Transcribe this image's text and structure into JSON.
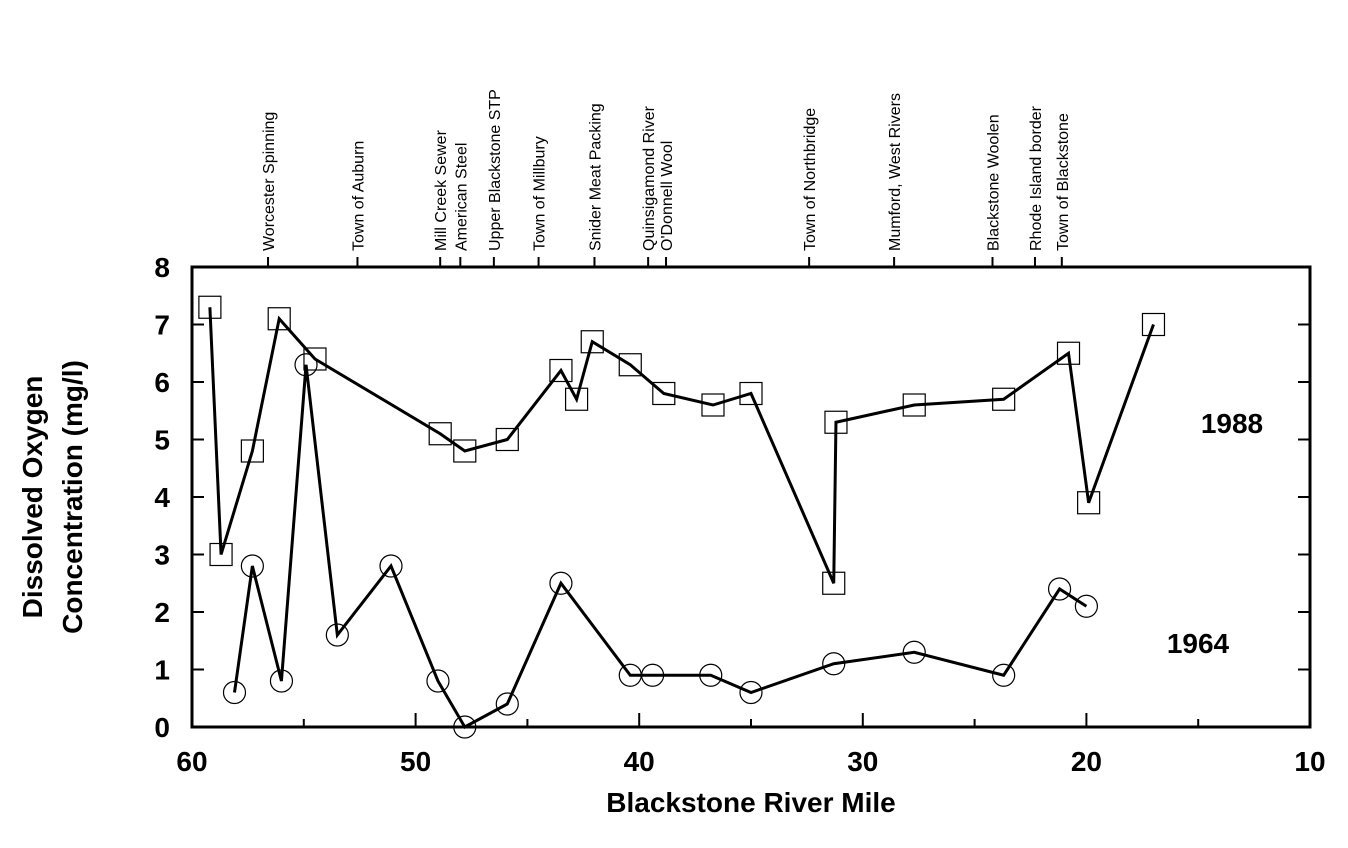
{
  "chart_data": {
    "type": "line",
    "x_label": "Blackstone River Mile",
    "y_label": [
      "Dissolved Oxygen",
      "Concentration (mg/l)"
    ],
    "xlim": [
      60,
      10
    ],
    "xticks": [
      60,
      50,
      40,
      30,
      20,
      10
    ],
    "xminor_ticks": [
      55,
      45,
      35,
      25,
      15
    ],
    "ylim": [
      0,
      8
    ],
    "yticks": [
      0,
      1,
      2,
      3,
      4,
      5,
      6,
      7,
      8
    ],
    "series": [
      {
        "name": "1988",
        "color": "#000000",
        "marker": "square",
        "x": [
          59.2,
          58.7,
          57.3,
          56.1,
          54.5,
          48.9,
          47.8,
          45.9,
          43.5,
          42.8,
          42.1,
          40.4,
          38.9,
          36.7,
          35.0,
          31.3,
          31.2,
          27.7,
          23.7,
          20.8,
          19.9,
          17.0
        ],
        "values": [
          7.3,
          3.0,
          4.8,
          7.1,
          6.4,
          5.1,
          4.8,
          5.0,
          6.2,
          5.7,
          6.7,
          6.3,
          5.8,
          5.6,
          5.8,
          2.5,
          5.3,
          5.6,
          5.7,
          6.5,
          3.9,
          7.0
        ]
      },
      {
        "name": "1964",
        "color": "#000000",
        "marker": "circle",
        "x": [
          58.1,
          57.3,
          56.0,
          54.9,
          53.5,
          51.1,
          49.0,
          47.8,
          45.9,
          43.5,
          40.4,
          39.4,
          36.8,
          35.0,
          31.3,
          27.7,
          23.7,
          21.2,
          20.0
        ],
        "values": [
          0.6,
          2.8,
          0.8,
          6.3,
          1.6,
          2.8,
          0.8,
          0.0,
          0.4,
          2.5,
          0.9,
          0.9,
          0.9,
          0.6,
          1.1,
          1.3,
          0.9,
          2.4,
          2.1
        ]
      }
    ],
    "annotations": [
      {
        "text": "Worcester Spinning",
        "x": 56.6
      },
      {
        "text": "Town of Auburn",
        "x": 52.6
      },
      {
        "text": "Mill Creek Sewer",
        "x": 48.9
      },
      {
        "text": "American Steel",
        "x": 48.0
      },
      {
        "text": "Upper Blackstone STP",
        "x": 46.5
      },
      {
        "text": "Town of Millbury",
        "x": 44.5
      },
      {
        "text": "Snider Meat Packing",
        "x": 42.0
      },
      {
        "text": "Quinsigamond River",
        "x": 39.6
      },
      {
        "text": "O'Donnell Wool",
        "x": 38.8
      },
      {
        "text": "Town of Northbridge",
        "x": 32.4
      },
      {
        "text": "Mumford, West Rivers",
        "x": 28.6
      },
      {
        "text": "Blackstone Woolen",
        "x": 24.2
      },
      {
        "text": "Rhode Island border",
        "x": 22.3
      },
      {
        "text": "Town of Blackstone",
        "x": 21.1
      }
    ]
  }
}
